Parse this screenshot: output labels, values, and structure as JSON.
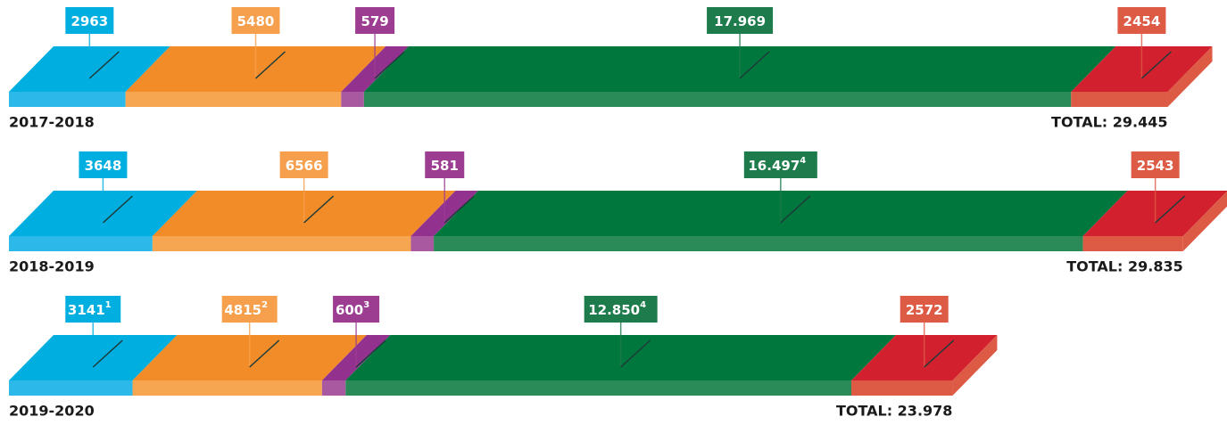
{
  "chart_data": {
    "type": "bar",
    "orientation": "horizontal",
    "stacked": true,
    "three_d": true,
    "categories": [
      "2017-2018",
      "2018-2019",
      "2019-2020"
    ],
    "total_labels": [
      "TOTAL: 29.445",
      "TOTAL: 29.835",
      "TOTAL: 23.978"
    ],
    "series": [
      {
        "color": "#00aee0",
        "front_color": "#2cb9e9",
        "box_color": "#00aee0",
        "values": [
          2963,
          3648,
          3141
        ],
        "value_labels": [
          "2963",
          "3648",
          "3141"
        ],
        "footnotes": [
          null,
          null,
          "1"
        ]
      },
      {
        "color": "#f28c28",
        "front_color": "#f6a650",
        "box_color": "#f6a04d",
        "values": [
          5480,
          6566,
          4815
        ],
        "value_labels": [
          "5480",
          "6566",
          "4815"
        ],
        "footnotes": [
          null,
          null,
          "2"
        ]
      },
      {
        "color": "#93328e",
        "front_color": "#a9599f",
        "box_color": "#9c3d92",
        "values": [
          579,
          581,
          600
        ],
        "value_labels": [
          "579",
          "581",
          "600"
        ],
        "footnotes": [
          null,
          null,
          "3"
        ]
      },
      {
        "color": "#00773c",
        "front_color": "#2a8b58",
        "box_color": "#1e7b4b",
        "values": [
          17969,
          16497,
          12850
        ],
        "value_labels": [
          "17.969",
          "16.497",
          "12.850"
        ],
        "footnotes": [
          null,
          "4",
          "4"
        ]
      },
      {
        "color": "#d2202f",
        "front_color": "#dd5a45",
        "box_color": "#dd5a45",
        "values": [
          2454,
          2543,
          2572
        ],
        "value_labels": [
          "2454",
          "2543",
          "2572"
        ],
        "footnotes": [
          null,
          null,
          null
        ]
      }
    ]
  }
}
